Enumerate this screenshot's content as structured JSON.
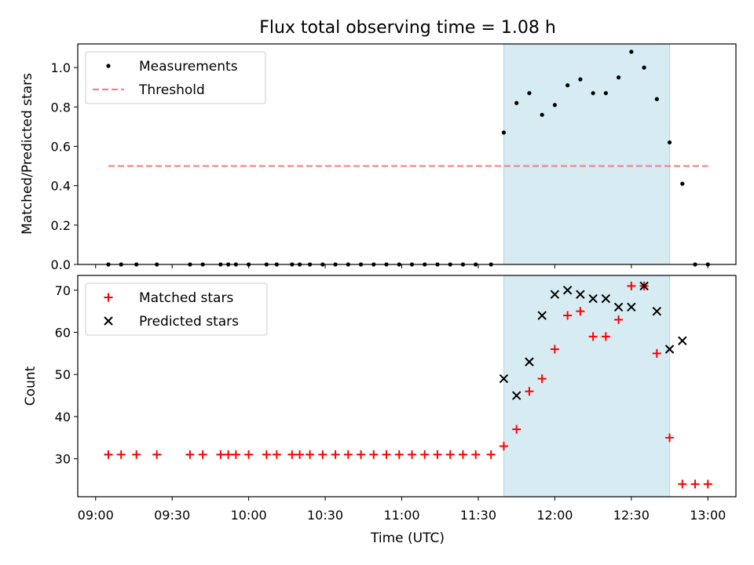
{
  "chart_data": [
    {
      "type": "scatter",
      "title": "Flux total observing time = 1.08 h",
      "xlabel": "",
      "ylabel": "Matched/Predicted stars",
      "xlim": [
        "08:53",
        "13:11"
      ],
      "ylim": [
        0.0,
        1.12
      ],
      "yticks": [
        0.0,
        0.2,
        0.4,
        0.6,
        0.8,
        1.0
      ],
      "ytick_labels": [
        "0.0",
        "0.2",
        "0.4",
        "0.6",
        "0.8",
        "1.0"
      ],
      "highlight_span": [
        "11:40",
        "12:45"
      ],
      "legend": {
        "position": "top-left",
        "entries": [
          "Measurements",
          "Threshold"
        ]
      },
      "series": [
        {
          "name": "Measurements",
          "marker": "dot",
          "color": "#000000",
          "x": [
            "09:05",
            "09:10",
            "09:16",
            "09:24",
            "09:37",
            "09:42",
            "09:49",
            "09:52",
            "09:55",
            "10:00",
            "10:07",
            "10:11",
            "10:17",
            "10:20",
            "10:24",
            "10:29",
            "10:34",
            "10:39",
            "10:44",
            "10:49",
            "10:54",
            "10:59",
            "11:04",
            "11:09",
            "11:14",
            "11:19",
            "11:24",
            "11:29",
            "11:35",
            "11:40",
            "11:45",
            "11:50",
            "11:55",
            "12:00",
            "12:05",
            "12:10",
            "12:15",
            "12:20",
            "12:25",
            "12:30",
            "12:35",
            "12:40",
            "12:45",
            "12:50",
            "12:55",
            "13:00"
          ],
          "y": [
            0,
            0,
            0,
            0,
            0,
            0,
            0,
            0,
            0,
            0,
            0,
            0,
            0,
            0,
            0,
            0,
            0,
            0,
            0,
            0,
            0,
            0,
            0,
            0,
            0,
            0,
            0,
            0,
            0,
            0.67,
            0.82,
            0.87,
            0.76,
            0.81,
            0.91,
            0.94,
            0.87,
            0.87,
            0.95,
            1.08,
            1.0,
            0.84,
            0.62,
            0.41,
            0,
            0
          ]
        },
        {
          "name": "Threshold",
          "style": "dashed",
          "color": "#ff7f7f",
          "x": [
            "09:05",
            "13:00"
          ],
          "y": [
            0.5,
            0.5
          ]
        }
      ]
    },
    {
      "type": "scatter",
      "title": "",
      "xlabel": "Time (UTC)",
      "ylabel": "Count",
      "xlim": [
        "08:53",
        "13:11"
      ],
      "ylim": [
        21,
        73.5
      ],
      "yticks": [
        30,
        40,
        50,
        60,
        70
      ],
      "ytick_labels": [
        "30",
        "40",
        "50",
        "60",
        "70"
      ],
      "xticks": [
        "09:00",
        "09:30",
        "10:00",
        "10:30",
        "11:00",
        "11:30",
        "12:00",
        "12:30",
        "13:00"
      ],
      "xtick_labels": [
        "09:00",
        "09:30",
        "10:00",
        "10:30",
        "11:00",
        "11:30",
        "12:00",
        "12:30",
        "13:00"
      ],
      "highlight_span": [
        "11:40",
        "12:45"
      ],
      "legend": {
        "position": "top-left",
        "entries": [
          "Matched stars",
          "Predicted stars"
        ]
      },
      "series": [
        {
          "name": "Matched stars",
          "marker": "plus",
          "color": "#ff0000",
          "x": [
            "09:05",
            "09:10",
            "09:16",
            "09:24",
            "09:37",
            "09:42",
            "09:49",
            "09:52",
            "09:55",
            "10:00",
            "10:07",
            "10:11",
            "10:17",
            "10:20",
            "10:24",
            "10:29",
            "10:34",
            "10:39",
            "10:44",
            "10:49",
            "10:54",
            "10:59",
            "11:04",
            "11:09",
            "11:14",
            "11:19",
            "11:24",
            "11:29",
            "11:35",
            "11:40",
            "11:45",
            "11:50",
            "11:55",
            "12:00",
            "12:05",
            "12:10",
            "12:15",
            "12:20",
            "12:25",
            "12:30",
            "12:35",
            "12:40",
            "12:45",
            "12:50",
            "12:55",
            "13:00"
          ],
          "y": [
            31,
            31,
            31,
            31,
            31,
            31,
            31,
            31,
            31,
            31,
            31,
            31,
            31,
            31,
            31,
            31,
            31,
            31,
            31,
            31,
            31,
            31,
            31,
            31,
            31,
            31,
            31,
            31,
            31,
            33,
            37,
            46,
            49,
            56,
            64,
            65,
            59,
            59,
            63,
            71,
            71,
            55,
            35,
            24,
            24,
            24
          ]
        },
        {
          "name": "Predicted stars",
          "marker": "x",
          "color": "#000000",
          "x": [
            "11:40",
            "11:45",
            "11:50",
            "11:55",
            "12:00",
            "12:05",
            "12:10",
            "12:15",
            "12:20",
            "12:25",
            "12:30",
            "12:35",
            "12:40",
            "12:45",
            "12:50"
          ],
          "y": [
            49,
            45,
            53,
            64,
            69,
            70,
            69,
            68,
            68,
            66,
            66,
            71,
            65,
            56,
            58
          ]
        }
      ]
    }
  ],
  "colors": {
    "span": "#add8e6",
    "matched": "#ff0000",
    "predicted": "#000000",
    "measurements": "#000000",
    "threshold": "#ff7f7f"
  }
}
